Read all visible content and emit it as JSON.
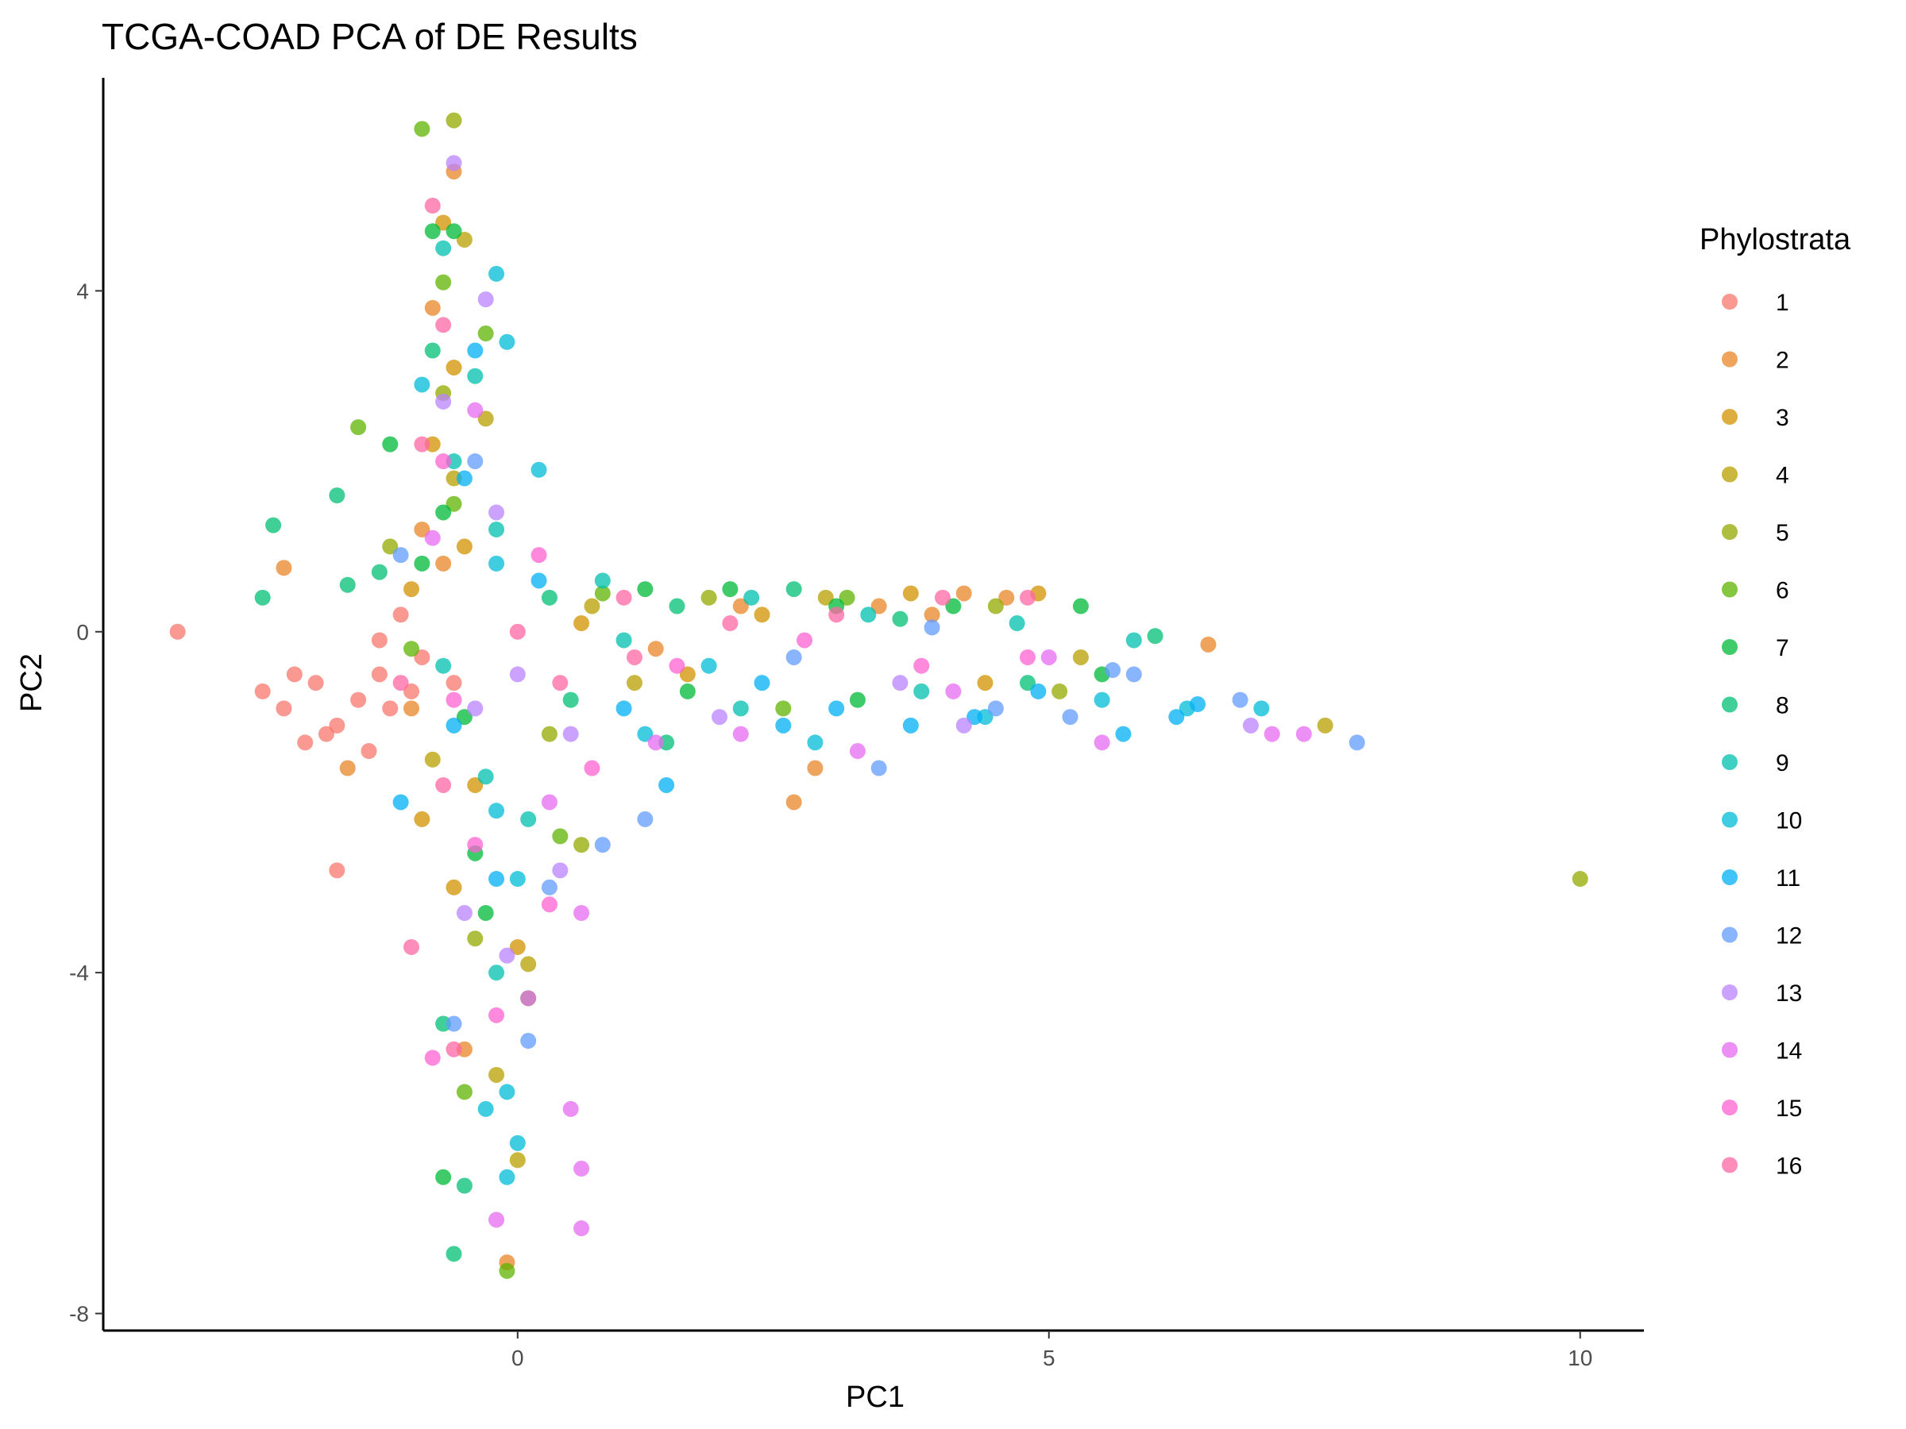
{
  "chart_data": {
    "type": "scatter",
    "title": "TCGA-COAD PCA of DE Results",
    "xlabel": "PC1",
    "ylabel": "PC2",
    "xlim": [
      -3.9,
      10.6
    ],
    "ylim": [
      -8.2,
      6.5
    ],
    "x_ticks": [
      {
        "value": 0,
        "label": "0"
      },
      {
        "value": 5,
        "label": "5"
      },
      {
        "value": 10,
        "label": "10"
      }
    ],
    "y_ticks": [
      {
        "value": 4,
        "label": "4"
      },
      {
        "value": 0,
        "label": "0"
      },
      {
        "value": -4,
        "label": "-4"
      },
      {
        "value": -8,
        "label": "-8"
      }
    ],
    "grid": false,
    "legend": {
      "title": "Phylostrata",
      "position": "right",
      "entries": [
        {
          "label": "1",
          "color": "#F8766D"
        },
        {
          "label": "2",
          "color": "#E88526"
        },
        {
          "label": "3",
          "color": "#D39200"
        },
        {
          "label": "4",
          "color": "#B79F00"
        },
        {
          "label": "5",
          "color": "#93AA00"
        },
        {
          "label": "6",
          "color": "#5EB300"
        },
        {
          "label": "7",
          "color": "#00BA38"
        },
        {
          "label": "8",
          "color": "#00BF74"
        },
        {
          "label": "9",
          "color": "#00C0AF"
        },
        {
          "label": "10",
          "color": "#00BCD8"
        },
        {
          "label": "11",
          "color": "#00B0F6"
        },
        {
          "label": "12",
          "color": "#619CFF"
        },
        {
          "label": "13",
          "color": "#B983FF"
        },
        {
          "label": "14",
          "color": "#E76BF3"
        },
        {
          "label": "15",
          "color": "#FD61D1"
        },
        {
          "label": "16",
          "color": "#FF67A4"
        }
      ]
    },
    "series": [
      {
        "name": "1",
        "points": [
          [
            -3.2,
            0.0
          ],
          [
            -2.4,
            -0.7
          ],
          [
            -2.1,
            -0.5
          ],
          [
            -1.9,
            -0.6
          ],
          [
            -1.7,
            -1.1
          ],
          [
            -1.5,
            -0.8
          ],
          [
            -1.2,
            -0.9
          ],
          [
            -1.4,
            -1.4
          ],
          [
            -1.7,
            -2.8
          ],
          [
            -1.3,
            -0.1
          ],
          [
            -0.9,
            -0.3
          ],
          [
            -0.6,
            -0.6
          ],
          [
            -2.2,
            -0.9
          ],
          [
            -1.8,
            -1.2
          ],
          [
            -1.1,
            0.2
          ],
          [
            -1.0,
            -0.7
          ],
          [
            -1.3,
            -0.5
          ],
          [
            -2.0,
            -1.3
          ]
        ]
      },
      {
        "name": "2",
        "points": [
          [
            -2.2,
            0.75
          ],
          [
            -1.6,
            -1.6
          ],
          [
            -0.6,
            5.4
          ],
          [
            -0.8,
            3.8
          ],
          [
            -0.9,
            1.2
          ],
          [
            -0.5,
            -4.9
          ],
          [
            -0.1,
            -7.4
          ],
          [
            4.2,
            0.45
          ],
          [
            4.6,
            0.4
          ],
          [
            6.5,
            -0.15
          ],
          [
            2.8,
            -1.6
          ],
          [
            2.6,
            -2.0
          ],
          [
            1.3,
            -0.2
          ],
          [
            3.4,
            0.3
          ],
          [
            -1.0,
            -0.9
          ],
          [
            -0.7,
            0.8
          ],
          [
            2.1,
            0.3
          ],
          [
            3.9,
            0.2
          ]
        ]
      },
      {
        "name": "3",
        "points": [
          [
            -0.7,
            4.8
          ],
          [
            -0.6,
            3.1
          ],
          [
            -0.8,
            2.2
          ],
          [
            -0.5,
            1.0
          ],
          [
            -0.9,
            -2.2
          ],
          [
            -0.6,
            -3.0
          ],
          [
            0.0,
            -3.7
          ],
          [
            3.7,
            0.45
          ],
          [
            4.9,
            0.45
          ],
          [
            2.3,
            0.2
          ],
          [
            -1.0,
            0.5
          ],
          [
            -0.4,
            -1.8
          ],
          [
            1.6,
            -0.5
          ],
          [
            4.4,
            -0.6
          ],
          [
            0.6,
            0.1
          ]
        ]
      },
      {
        "name": "4",
        "points": [
          [
            -0.5,
            4.6
          ],
          [
            -0.3,
            2.5
          ],
          [
            -0.6,
            1.8
          ],
          [
            0.1,
            -3.9
          ],
          [
            0.0,
            -6.2
          ],
          [
            -0.2,
            -5.2
          ],
          [
            7.6,
            -1.1
          ],
          [
            5.3,
            -0.3
          ],
          [
            0.7,
            0.3
          ],
          [
            -0.8,
            -1.5
          ],
          [
            2.9,
            0.4
          ],
          [
            1.1,
            -0.6
          ]
        ]
      },
      {
        "name": "5",
        "points": [
          [
            -0.6,
            6.0
          ],
          [
            10.0,
            -2.9
          ],
          [
            0.6,
            -2.5
          ],
          [
            -0.4,
            -3.6
          ],
          [
            4.5,
            0.3
          ],
          [
            5.1,
            -0.7
          ],
          [
            -0.7,
            2.8
          ],
          [
            1.8,
            0.4
          ],
          [
            0.3,
            -1.2
          ],
          [
            -1.2,
            1.0
          ]
        ]
      },
      {
        "name": "6",
        "points": [
          [
            -0.9,
            5.9
          ],
          [
            -1.5,
            2.4
          ],
          [
            -0.7,
            4.1
          ],
          [
            -0.3,
            3.5
          ],
          [
            0.4,
            -2.4
          ],
          [
            0.1,
            -4.3
          ],
          [
            -0.1,
            -7.5
          ],
          [
            3.1,
            0.4
          ],
          [
            0.8,
            0.45
          ],
          [
            2.5,
            -0.9
          ],
          [
            -0.5,
            -5.4
          ],
          [
            -1.0,
            -0.2
          ],
          [
            -0.6,
            1.5
          ]
        ]
      },
      {
        "name": "7",
        "points": [
          [
            -0.8,
            4.7
          ],
          [
            -0.6,
            4.7
          ],
          [
            -1.2,
            2.2
          ],
          [
            -0.7,
            1.4
          ],
          [
            -0.9,
            0.8
          ],
          [
            -0.5,
            -1.0
          ],
          [
            -0.4,
            -2.6
          ],
          [
            -0.3,
            -3.3
          ],
          [
            -0.7,
            -6.4
          ],
          [
            1.2,
            0.5
          ],
          [
            2.0,
            0.5
          ],
          [
            3.0,
            0.3
          ],
          [
            4.1,
            0.3
          ],
          [
            5.3,
            0.3
          ],
          [
            1.6,
            -0.7
          ],
          [
            3.2,
            -0.8
          ],
          [
            5.5,
            -0.5
          ]
        ]
      },
      {
        "name": "8",
        "points": [
          [
            -2.3,
            1.25
          ],
          [
            -2.4,
            0.4
          ],
          [
            -1.7,
            1.6
          ],
          [
            -1.6,
            0.55
          ],
          [
            -0.8,
            3.3
          ],
          [
            -0.5,
            -6.5
          ],
          [
            -0.6,
            -7.3
          ],
          [
            0.3,
            0.4
          ],
          [
            1.5,
            0.3
          ],
          [
            2.6,
            0.5
          ],
          [
            6.0,
            -0.05
          ],
          [
            4.8,
            -0.6
          ],
          [
            1.4,
            -1.3
          ],
          [
            -1.3,
            0.7
          ],
          [
            0.5,
            -0.8
          ],
          [
            -0.7,
            -4.6
          ],
          [
            3.6,
            0.15
          ]
        ]
      },
      {
        "name": "9",
        "points": [
          [
            -0.7,
            4.5
          ],
          [
            -0.4,
            3.0
          ],
          [
            -0.6,
            2.0
          ],
          [
            -0.2,
            1.2
          ],
          [
            -0.7,
            -0.4
          ],
          [
            -0.3,
            -1.7
          ],
          [
            0.1,
            -2.2
          ],
          [
            1.0,
            -0.1
          ],
          [
            2.2,
            0.4
          ],
          [
            3.3,
            0.2
          ],
          [
            4.7,
            0.1
          ],
          [
            5.8,
            -0.1
          ],
          [
            2.1,
            -0.9
          ],
          [
            3.8,
            -0.7
          ],
          [
            -0.2,
            -4.0
          ],
          [
            0.8,
            0.6
          ]
        ]
      },
      {
        "name": "10",
        "points": [
          [
            -0.2,
            4.2
          ],
          [
            -0.1,
            3.4
          ],
          [
            -0.9,
            2.9
          ],
          [
            0.2,
            1.9
          ],
          [
            -0.2,
            0.8
          ],
          [
            -0.2,
            -2.1
          ],
          [
            0.0,
            -2.9
          ],
          [
            -0.1,
            -5.4
          ],
          [
            -0.3,
            -5.6
          ],
          [
            0.0,
            -6.0
          ],
          [
            -0.1,
            -6.4
          ],
          [
            1.2,
            -1.2
          ],
          [
            1.8,
            -0.4
          ],
          [
            2.8,
            -1.3
          ],
          [
            4.4,
            -1.0
          ],
          [
            5.5,
            -0.8
          ],
          [
            6.3,
            -0.9
          ],
          [
            7.0,
            -0.9
          ]
        ]
      },
      {
        "name": "11",
        "points": [
          [
            -0.4,
            3.3
          ],
          [
            -0.5,
            1.8
          ],
          [
            0.2,
            0.6
          ],
          [
            -0.6,
            -1.1
          ],
          [
            -0.2,
            -2.9
          ],
          [
            -1.1,
            -2.0
          ],
          [
            1.4,
            -1.8
          ],
          [
            2.5,
            -1.1
          ],
          [
            3.0,
            -0.9
          ],
          [
            3.7,
            -1.1
          ],
          [
            4.3,
            -1.0
          ],
          [
            4.9,
            -0.7
          ],
          [
            5.7,
            -1.2
          ],
          [
            6.2,
            -1.0
          ],
          [
            6.4,
            -0.85
          ],
          [
            2.3,
            -0.6
          ],
          [
            1.0,
            -0.9
          ]
        ]
      },
      {
        "name": "12",
        "points": [
          [
            -1.1,
            0.9
          ],
          [
            -0.4,
            2.0
          ],
          [
            0.3,
            -3.0
          ],
          [
            0.1,
            -4.8
          ],
          [
            -0.6,
            -4.6
          ],
          [
            0.8,
            -2.5
          ],
          [
            1.2,
            -2.2
          ],
          [
            3.4,
            -1.6
          ],
          [
            4.5,
            -0.9
          ],
          [
            5.2,
            -1.0
          ],
          [
            5.8,
            -0.5
          ],
          [
            6.8,
            -0.8
          ],
          [
            7.9,
            -1.3
          ],
          [
            5.6,
            -0.45
          ],
          [
            2.6,
            -0.3
          ],
          [
            3.9,
            0.05
          ]
        ]
      },
      {
        "name": "13",
        "points": [
          [
            -0.6,
            5.5
          ],
          [
            -0.3,
            3.9
          ],
          [
            -0.7,
            2.7
          ],
          [
            -0.2,
            1.4
          ],
          [
            -0.4,
            -0.9
          ],
          [
            -0.5,
            -3.3
          ],
          [
            0.4,
            -2.8
          ],
          [
            -0.1,
            -3.8
          ],
          [
            0.5,
            -1.2
          ],
          [
            1.9,
            -1.0
          ],
          [
            3.6,
            -0.6
          ],
          [
            4.2,
            -1.1
          ],
          [
            6.9,
            -1.1
          ],
          [
            0.0,
            -0.5
          ]
        ]
      },
      {
        "name": "14",
        "points": [
          [
            -0.4,
            2.6
          ],
          [
            -0.8,
            1.1
          ],
          [
            0.1,
            -4.3
          ],
          [
            -0.2,
            -6.9
          ],
          [
            0.6,
            -6.3
          ],
          [
            0.6,
            -7.0
          ],
          [
            0.5,
            -5.6
          ],
          [
            0.6,
            -3.3
          ],
          [
            1.3,
            -1.3
          ],
          [
            2.1,
            -1.2
          ],
          [
            3.2,
            -1.4
          ],
          [
            4.1,
            -0.7
          ],
          [
            5.0,
            -0.3
          ],
          [
            5.5,
            -1.3
          ],
          [
            7.1,
            -1.2
          ],
          [
            7.4,
            -1.2
          ],
          [
            0.3,
            -2.0
          ]
        ]
      },
      {
        "name": "15",
        "points": [
          [
            -0.7,
            2.0
          ],
          [
            -0.6,
            -0.8
          ],
          [
            -0.4,
            -2.5
          ],
          [
            -0.2,
            -4.5
          ],
          [
            0.3,
            -3.2
          ],
          [
            -0.8,
            -5.0
          ],
          [
            0.7,
            -1.6
          ],
          [
            1.5,
            -0.4
          ],
          [
            2.7,
            -0.1
          ],
          [
            3.8,
            -0.4
          ],
          [
            4.8,
            -0.3
          ],
          [
            0.2,
            0.9
          ]
        ]
      },
      {
        "name": "16",
        "points": [
          [
            -0.8,
            5.0
          ],
          [
            -0.7,
            3.6
          ],
          [
            -0.9,
            2.2
          ],
          [
            -1.1,
            -0.6
          ],
          [
            -0.7,
            -1.8
          ],
          [
            -1.0,
            -3.7
          ],
          [
            -0.6,
            -4.9
          ],
          [
            0.0,
            0.0
          ],
          [
            1.0,
            0.4
          ],
          [
            2.0,
            0.1
          ],
          [
            3.0,
            0.2
          ],
          [
            4.0,
            0.4
          ],
          [
            4.8,
            0.4
          ],
          [
            1.1,
            -0.3
          ],
          [
            0.4,
            -0.6
          ]
        ]
      }
    ]
  }
}
